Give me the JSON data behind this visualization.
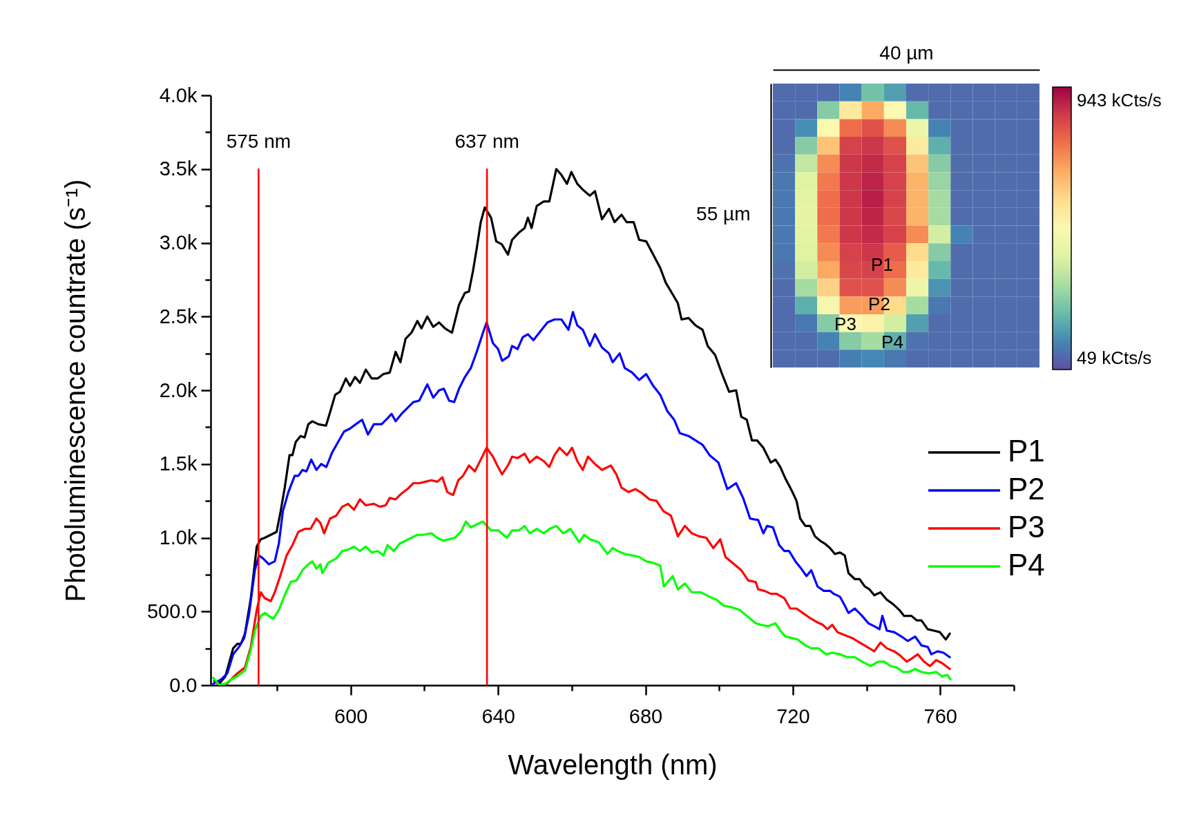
{
  "chart_data": [
    {
      "type": "line",
      "xlabel": "Wavelength (nm)",
      "ylabel": "Photoluminescence countrate (s⁻¹)",
      "xlim": [
        562,
        780
      ],
      "ylim": [
        0,
        4000
      ],
      "xticks": [
        {
          "value": 580,
          "label": null
        },
        600,
        {
          "value": 620,
          "label": null
        },
        640,
        {
          "value": 660,
          "label": null
        },
        680,
        {
          "value": 700,
          "label": null
        },
        720,
        {
          "value": 740,
          "label": null
        },
        760,
        {
          "value": 780,
          "label": null
        }
      ],
      "yticks": [
        {
          "value": 0,
          "label": "0.0"
        },
        {
          "value": 250,
          "label": null
        },
        {
          "value": 500,
          "label": "500.0"
        },
        {
          "value": 750,
          "label": null
        },
        {
          "value": 1000,
          "label": "1.0k"
        },
        {
          "value": 1250,
          "label": null
        },
        {
          "value": 1500,
          "label": "1.5k"
        },
        {
          "value": 1750,
          "label": null
        },
        {
          "value": 2000,
          "label": "2.0k"
        },
        {
          "value": 2250,
          "label": null
        },
        {
          "value": 2500,
          "label": "2.5k"
        },
        {
          "value": 2750,
          "label": null
        },
        {
          "value": 3000,
          "label": "3.0k"
        },
        {
          "value": 3250,
          "label": null
        },
        {
          "value": 3500,
          "label": "3.5k"
        },
        {
          "value": 3750,
          "label": null
        },
        {
          "value": 4000,
          "label": "4.0k"
        }
      ],
      "grid": false,
      "legend": "right",
      "ref_lines": [
        {
          "axis": "x",
          "value": 575,
          "label": "575 nm",
          "color": "#ff0000"
        },
        {
          "axis": "x",
          "value": 637,
          "label": "637 nm",
          "color": "#ff0000"
        }
      ],
      "series": [
        {
          "name": "P1",
          "color": "#000000",
          "x": [
            563.0,
            564.3,
            566.0,
            568.1,
            569.2,
            570.2,
            571.3,
            572.9,
            574.5,
            575.6,
            576.7,
            578.3,
            579.9,
            581.0,
            582.1,
            583.4,
            584.2,
            585.1,
            586.4,
            587.5,
            588.5,
            589.6,
            591.2,
            593.3,
            594.4,
            595.8,
            597.1,
            598.7,
            599.8,
            601.2,
            602.5,
            604.1,
            605.7,
            607.3,
            608.9,
            610.6,
            612.2,
            613.5,
            614.9,
            616.5,
            618.1,
            619.2,
            620.8,
            622.4,
            624.0,
            625.6,
            627.5,
            629.4,
            631.0,
            632.1,
            633.2,
            634.2,
            635.3,
            636.4,
            638.1,
            639.5,
            641.0,
            642.7,
            643.8,
            645.7,
            647.2,
            648.1,
            649.1,
            650.5,
            652.4,
            653.9,
            655.8,
            657.2,
            658.7,
            659.9,
            661.5,
            663.0,
            664.9,
            666.3,
            668.2,
            670.1,
            671.6,
            673.5,
            674.9,
            676.8,
            678.3,
            680.2,
            682.1,
            684.0,
            685.5,
            687.4,
            688.8,
            689.8,
            691.7,
            693.6,
            695.5,
            696.9,
            698.9,
            700.8,
            702.7,
            704.6,
            706.0,
            707.5,
            708.9,
            710.3,
            712.0,
            714.0,
            715.3,
            716.6,
            718.0,
            719.7,
            721.0,
            722.0,
            723.4,
            724.7,
            726.0,
            727.4,
            728.7,
            730.1,
            731.4,
            732.8,
            734.1,
            735.1,
            736.8,
            738.1,
            739.5,
            740.8,
            742.1,
            743.8,
            745.5,
            747.2,
            748.9,
            750.2,
            752.2,
            753.6,
            754.9,
            756.6,
            758.3,
            759.9,
            761.5,
            762.6
          ],
          "values": [
            30,
            10,
            60,
            250,
            280,
            280,
            350,
            590,
            940,
            990,
            1000,
            1020,
            1040,
            1180,
            1340,
            1560,
            1560,
            1650,
            1690,
            1680,
            1770,
            1790,
            1770,
            1760,
            1850,
            1970,
            1990,
            2080,
            2030,
            2090,
            2050,
            2140,
            2080,
            2080,
            2110,
            2120,
            2260,
            2190,
            2350,
            2390,
            2470,
            2420,
            2500,
            2430,
            2460,
            2420,
            2390,
            2580,
            2660,
            2670,
            2810,
            2960,
            3140,
            3240,
            3170,
            3010,
            2990,
            2920,
            3020,
            3070,
            3100,
            3170,
            3100,
            3250,
            3280,
            3280,
            3500,
            3460,
            3400,
            3480,
            3400,
            3360,
            3320,
            3350,
            3160,
            3230,
            3140,
            3190,
            3140,
            3140,
            3020,
            3010,
            2920,
            2830,
            2730,
            2650,
            2590,
            2480,
            2490,
            2440,
            2410,
            2300,
            2240,
            2110,
            1990,
            2000,
            1820,
            1800,
            1660,
            1660,
            1610,
            1510,
            1530,
            1480,
            1400,
            1320,
            1250,
            1130,
            1080,
            1080,
            1010,
            980,
            960,
            930,
            890,
            900,
            880,
            760,
            720,
            720,
            670,
            650,
            610,
            630,
            580,
            550,
            510,
            470,
            470,
            440,
            440,
            380,
            370,
            360,
            310,
            350
          ]
        },
        {
          "name": "P2",
          "color": "#0000ff",
          "x": [
            562.7,
            564.9,
            566.5,
            568.1,
            569.7,
            571.1,
            572.4,
            574.0,
            575.1,
            576.2,
            577.8,
            579.4,
            580.5,
            581.6,
            583.1,
            584.8,
            585.8,
            586.9,
            588.0,
            589.3,
            590.7,
            592.0,
            593.4,
            595.0,
            596.6,
            598.2,
            599.8,
            601.4,
            603.1,
            604.7,
            606.3,
            608.4,
            610.0,
            611.1,
            612.2,
            613.8,
            615.4,
            617.0,
            618.6,
            620.8,
            622.4,
            624.0,
            625.3,
            626.7,
            628.1,
            629.4,
            631.0,
            632.6,
            634.2,
            635.9,
            636.9,
            638.6,
            640.0,
            641.1,
            642.9,
            643.8,
            645.3,
            646.7,
            648.1,
            649.6,
            651.5,
            653.4,
            655.3,
            657.2,
            659.1,
            660.3,
            661.5,
            663.0,
            664.9,
            666.3,
            668.2,
            670.1,
            671.1,
            673.0,
            674.4,
            676.4,
            678.3,
            680.2,
            682.1,
            684.0,
            685.9,
            687.8,
            689.3,
            691.7,
            693.6,
            695.5,
            697.4,
            699.8,
            702.2,
            704.6,
            706.5,
            708.4,
            710.6,
            712.0,
            713.0,
            714.6,
            716.3,
            717.7,
            719.0,
            720.7,
            722.3,
            723.7,
            725.0,
            726.7,
            728.4,
            730.1,
            731.1,
            732.8,
            734.1,
            735.1,
            736.8,
            738.8,
            740.5,
            742.1,
            743.5,
            744.3,
            745.5,
            747.5,
            749.5,
            751.2,
            753.2,
            754.9,
            756.6,
            757.6,
            759.3,
            760.9,
            762.6
          ],
          "values": [
            10,
            40,
            80,
            210,
            260,
            320,
            480,
            780,
            880,
            860,
            820,
            840,
            960,
            1180,
            1310,
            1420,
            1420,
            1460,
            1450,
            1530,
            1460,
            1500,
            1480,
            1580,
            1650,
            1720,
            1740,
            1770,
            1800,
            1700,
            1770,
            1770,
            1810,
            1840,
            1790,
            1840,
            1880,
            1920,
            1930,
            2040,
            1950,
            2000,
            2010,
            1930,
            1920,
            2010,
            2090,
            2150,
            2260,
            2390,
            2460,
            2320,
            2280,
            2200,
            2230,
            2300,
            2280,
            2360,
            2380,
            2340,
            2400,
            2460,
            2480,
            2480,
            2410,
            2530,
            2440,
            2410,
            2300,
            2380,
            2290,
            2250,
            2190,
            2250,
            2150,
            2120,
            2070,
            2110,
            2030,
            1970,
            1860,
            1800,
            1710,
            1690,
            1660,
            1630,
            1560,
            1510,
            1330,
            1370,
            1270,
            1130,
            1120,
            1030,
            1080,
            1070,
            950,
            910,
            910,
            840,
            790,
            740,
            780,
            670,
            640,
            640,
            620,
            600,
            540,
            490,
            520,
            470,
            420,
            400,
            380,
            470,
            370,
            360,
            330,
            300,
            330,
            270,
            260,
            210,
            230,
            220,
            190
          ]
        },
        {
          "name": "P3",
          "color": "#ff0000",
          "x": [
            563.8,
            566.0,
            567.6,
            569.2,
            571.3,
            572.9,
            574.5,
            575.6,
            576.7,
            578.3,
            579.4,
            581.0,
            582.6,
            584.2,
            585.8,
            587.5,
            589.1,
            590.7,
            591.8,
            592.8,
            594.4,
            596.1,
            597.7,
            599.3,
            600.9,
            602.5,
            604.1,
            606.3,
            607.9,
            609.5,
            610.6,
            612.2,
            613.8,
            615.4,
            617.0,
            618.6,
            620.3,
            621.9,
            623.5,
            624.9,
            626.2,
            627.8,
            629.2,
            630.5,
            632.1,
            633.7,
            635.3,
            636.9,
            638.6,
            640.0,
            641.1,
            642.9,
            643.8,
            645.3,
            647.2,
            648.6,
            650.5,
            652.4,
            653.9,
            655.3,
            656.7,
            658.7,
            660.1,
            661.5,
            663.0,
            664.4,
            666.3,
            668.2,
            670.6,
            672.1,
            673.5,
            675.4,
            677.3,
            679.2,
            681.1,
            683.0,
            684.9,
            686.9,
            688.8,
            690.7,
            692.6,
            694.5,
            696.5,
            698.4,
            700.3,
            701.7,
            704.1,
            706.0,
            707.9,
            709.9,
            710.6,
            712.3,
            714.0,
            715.6,
            717.7,
            719.3,
            721.0,
            722.7,
            724.4,
            726.4,
            728.1,
            729.4,
            730.7,
            732.1,
            734.1,
            736.1,
            738.1,
            740.1,
            742.1,
            743.8,
            745.5,
            747.5,
            749.2,
            750.9,
            752.2,
            753.9,
            755.6,
            757.2,
            758.9,
            760.5,
            762.6
          ],
          "values": [
            10,
            0,
            40,
            80,
            120,
            260,
            510,
            630,
            590,
            570,
            630,
            750,
            880,
            950,
            1040,
            1060,
            1060,
            1130,
            1100,
            1030,
            1130,
            1150,
            1210,
            1230,
            1190,
            1260,
            1220,
            1230,
            1210,
            1220,
            1270,
            1260,
            1300,
            1330,
            1370,
            1370,
            1380,
            1390,
            1380,
            1410,
            1310,
            1290,
            1390,
            1420,
            1490,
            1450,
            1530,
            1610,
            1550,
            1480,
            1430,
            1500,
            1550,
            1540,
            1570,
            1510,
            1550,
            1520,
            1480,
            1560,
            1610,
            1560,
            1610,
            1520,
            1460,
            1550,
            1500,
            1460,
            1490,
            1430,
            1340,
            1310,
            1330,
            1300,
            1260,
            1250,
            1180,
            1150,
            1010,
            1080,
            1030,
            1010,
            1000,
            930,
            990,
            870,
            820,
            780,
            710,
            700,
            650,
            640,
            620,
            620,
            590,
            520,
            520,
            490,
            460,
            430,
            410,
            380,
            410,
            360,
            340,
            320,
            290,
            260,
            230,
            290,
            250,
            230,
            200,
            160,
            180,
            210,
            160,
            130,
            170,
            150,
            110
          ]
        },
        {
          "name": "P4",
          "color": "#00ff00",
          "x": [
            562.7,
            564.3,
            566.0,
            567.6,
            569.2,
            571.3,
            572.9,
            574.0,
            575.6,
            576.7,
            577.8,
            579.0,
            580.5,
            582.1,
            583.7,
            585.3,
            586.9,
            588.5,
            589.6,
            590.7,
            591.8,
            592.3,
            593.9,
            596.1,
            597.7,
            599.3,
            600.9,
            602.5,
            604.1,
            605.7,
            607.3,
            608.9,
            610.0,
            611.7,
            613.3,
            614.9,
            616.5,
            618.1,
            619.7,
            621.9,
            623.5,
            625.1,
            626.7,
            628.3,
            629.9,
            631.3,
            632.6,
            634.2,
            635.9,
            638.1,
            640.0,
            642.4,
            643.8,
            645.7,
            647.2,
            648.6,
            650.5,
            652.4,
            653.9,
            655.8,
            657.7,
            659.6,
            662.0,
            663.4,
            664.9,
            667.3,
            669.7,
            671.1,
            672.5,
            674.4,
            676.4,
            678.3,
            680.2,
            682.1,
            684.0,
            685.0,
            687.4,
            688.8,
            690.7,
            692.6,
            695.0,
            697.4,
            699.3,
            701.2,
            703.2,
            705.6,
            708.0,
            709.9,
            711.3,
            713.3,
            715.3,
            716.6,
            718.0,
            719.7,
            721.3,
            723.4,
            725.0,
            727.0,
            729.0,
            730.7,
            732.8,
            734.8,
            736.8,
            738.8,
            741.1,
            743.2,
            744.8,
            746.5,
            748.2,
            749.9,
            751.5,
            753.2,
            754.9,
            756.9,
            758.9,
            760.5,
            761.9,
            762.8
          ],
          "values": [
            50,
            0,
            10,
            40,
            60,
            100,
            240,
            370,
            470,
            490,
            470,
            450,
            510,
            610,
            700,
            710,
            780,
            820,
            840,
            790,
            820,
            760,
            830,
            860,
            910,
            920,
            940,
            910,
            940,
            900,
            910,
            880,
            950,
            910,
            960,
            980,
            1000,
            1020,
            1020,
            1030,
            1000,
            980,
            990,
            1000,
            1040,
            1110,
            1070,
            1090,
            1110,
            1050,
            1050,
            1000,
            1050,
            1050,
            1080,
            1030,
            1060,
            1030,
            1060,
            1080,
            1030,
            1060,
            970,
            1020,
            990,
            970,
            890,
            930,
            910,
            890,
            880,
            870,
            840,
            830,
            810,
            670,
            740,
            650,
            690,
            630,
            630,
            600,
            580,
            540,
            530,
            510,
            460,
            420,
            410,
            400,
            420,
            370,
            330,
            320,
            310,
            270,
            250,
            250,
            210,
            220,
            210,
            190,
            190,
            160,
            130,
            160,
            160,
            130,
            120,
            90,
            90,
            110,
            90,
            80,
            90,
            60,
            70,
            40
          ]
        }
      ]
    },
    {
      "type": "heatmap",
      "xlabel": "40 µm",
      "ylabel": "55 µm",
      "categories": [
        null,
        null,
        null,
        null,
        null,
        null,
        null,
        null,
        null,
        null,
        null,
        null
      ],
      "y_categories": [
        null,
        null,
        null,
        null,
        null,
        null,
        null,
        null,
        null,
        null,
        null,
        null,
        null,
        null,
        null,
        null
      ],
      "cells": [
        [
          60,
          60,
          60,
          100,
          220,
          150,
          60,
          60,
          60,
          60,
          60,
          60
        ],
        [
          60,
          60,
          250,
          550,
          700,
          500,
          200,
          60,
          60,
          60,
          60,
          60
        ],
        [
          60,
          120,
          500,
          800,
          850,
          750,
          450,
          100,
          60,
          60,
          60,
          60
        ],
        [
          60,
          250,
          650,
          880,
          900,
          850,
          550,
          180,
          60,
          60,
          60,
          60
        ],
        [
          70,
          350,
          750,
          900,
          920,
          880,
          650,
          250,
          60,
          60,
          60,
          60
        ],
        [
          80,
          400,
          780,
          900,
          930,
          880,
          680,
          280,
          60,
          60,
          60,
          60
        ],
        [
          80,
          420,
          800,
          900,
          940,
          880,
          680,
          300,
          60,
          60,
          60,
          60
        ],
        [
          80,
          430,
          800,
          900,
          930,
          870,
          680,
          300,
          60,
          60,
          60,
          60
        ],
        [
          80,
          420,
          780,
          900,
          920,
          880,
          750,
          380,
          100,
          60,
          60,
          60
        ],
        [
          80,
          400,
          750,
          880,
          900,
          830,
          600,
          250,
          60,
          60,
          60,
          60
        ],
        [
          70,
          380,
          700,
          870,
          880,
          800,
          550,
          200,
          60,
          60,
          60,
          60
        ],
        [
          60,
          300,
          620,
          850,
          850,
          750,
          450,
          130,
          60,
          60,
          60,
          60
        ],
        [
          60,
          180,
          480,
          720,
          720,
          600,
          300,
          80,
          60,
          60,
          60,
          60
        ],
        [
          60,
          80,
          250,
          500,
          520,
          380,
          150,
          60,
          60,
          60,
          60,
          60
        ],
        [
          60,
          60,
          100,
          250,
          300,
          180,
          70,
          60,
          60,
          60,
          60,
          60
        ],
        [
          60,
          60,
          60,
          90,
          110,
          80,
          60,
          60,
          60,
          60,
          60,
          60
        ]
      ],
      "clim": [
        10,
        990
      ],
      "cticks": [
        {
          "value": 943,
          "label": "943 kCts/s"
        },
        {
          "value": 49,
          "label": "49 kCts/s"
        }
      ],
      "annotations": [
        "P1",
        "P2",
        "P3",
        "P4"
      ]
    }
  ]
}
